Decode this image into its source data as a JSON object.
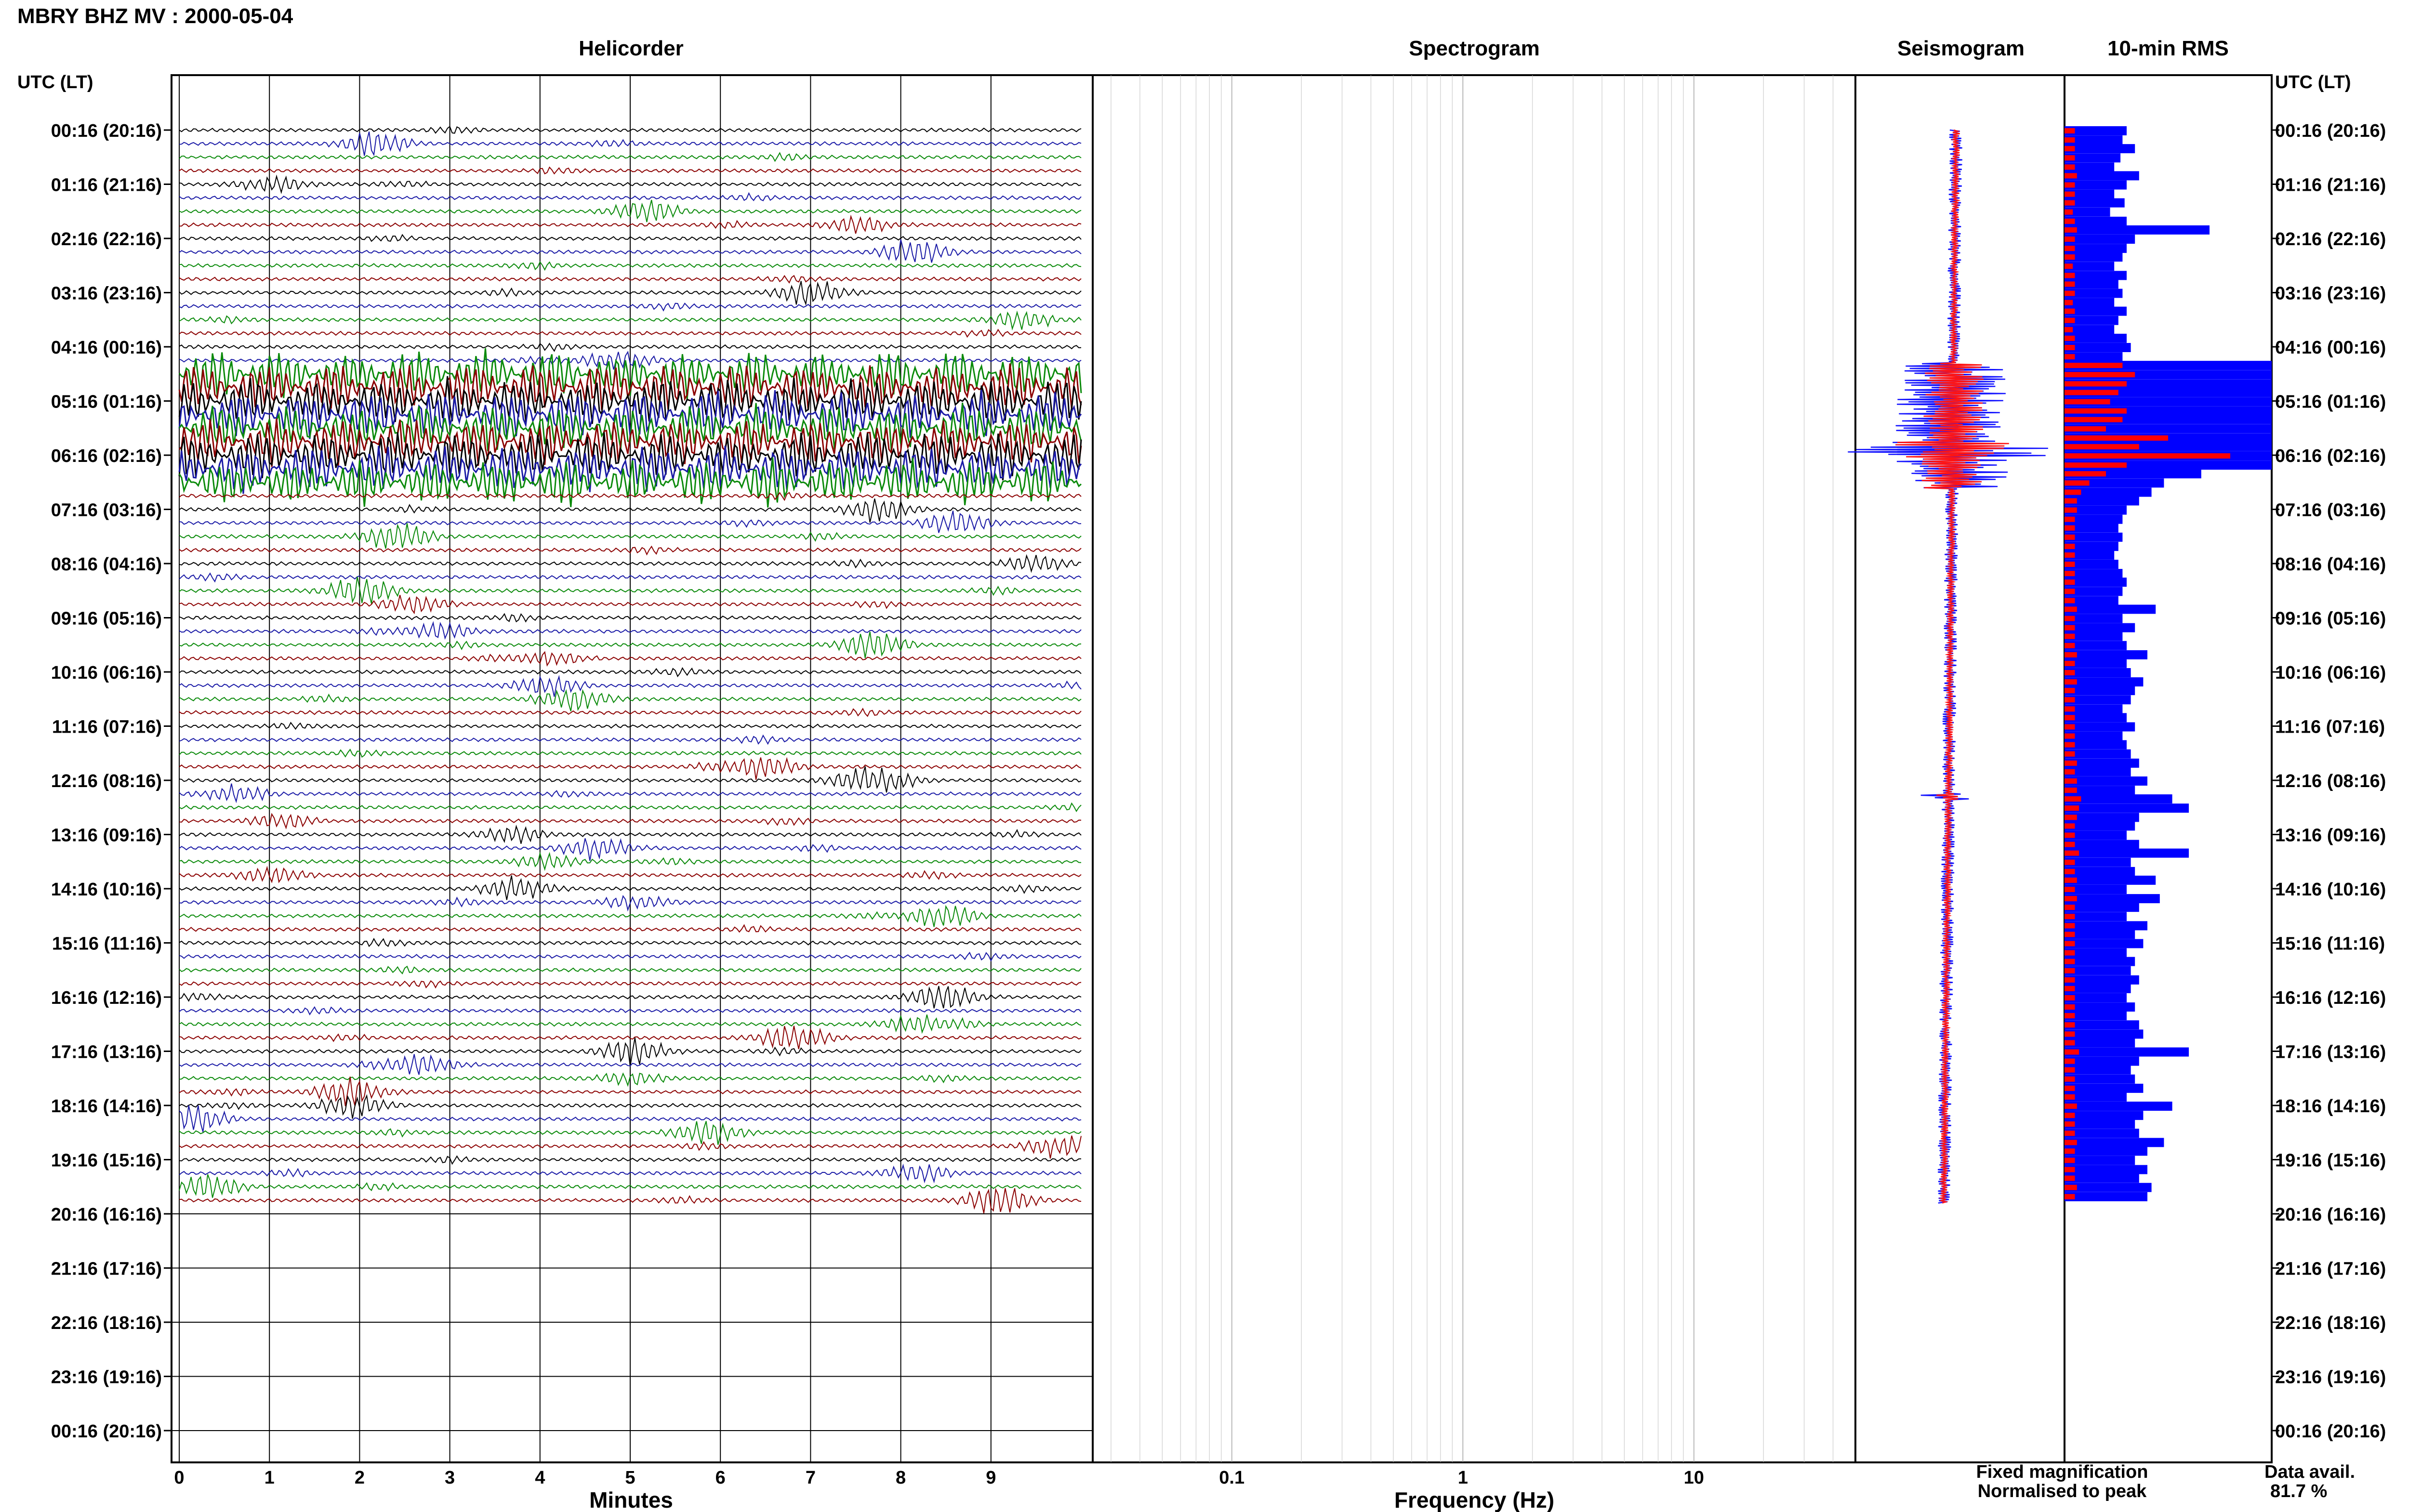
{
  "header": {
    "title": "MBRY BHZ MV : 2000-05-04"
  },
  "panels": {
    "helicorder_title": "Helicorder",
    "spectrogram_title": "Spectrogram",
    "seismogram_title": "Seismogram",
    "rms_title": "10-min RMS",
    "left_axis_title": "UTC (LT)",
    "right_axis_title": "UTC (LT)",
    "helicorder_xlabel": "Minutes",
    "spectrogram_xlabel": "Frequency (Hz)"
  },
  "legend": {
    "fixed": "Fixed magnification",
    "normalised": "Normalised to peak",
    "fixed_color": "#1414ff",
    "normalised_color": "#ff1414"
  },
  "availability": {
    "label": "Data avail.",
    "value": "81.7 %"
  },
  "colors": {
    "trace_cycle": [
      "#000000",
      "#1a1aa6",
      "#0a8a0a",
      "#8b0000"
    ],
    "seismogram_fixed": "#1414ff",
    "seismogram_norm": "#ff1414",
    "rms_fixed": "#0000ff",
    "rms_norm": "#ff0000"
  },
  "chart_data": {
    "type": "heatmap",
    "time_ticks": [
      "00:16 (20:16)",
      "01:16 (21:16)",
      "02:16 (22:16)",
      "03:16 (23:16)",
      "04:16 (00:16)",
      "05:16 (01:16)",
      "06:16 (02:16)",
      "07:16 (03:16)",
      "08:16 (04:16)",
      "09:16 (05:16)",
      "10:16 (06:16)",
      "11:16 (07:16)",
      "12:16 (08:16)",
      "13:16 (09:16)",
      "14:16 (10:16)",
      "15:16 (11:16)",
      "16:16 (12:16)",
      "17:16 (13:16)",
      "18:16 (14:16)",
      "19:16 (15:16)",
      "20:16 (16:16)",
      "21:16 (17:16)",
      "22:16 (18:16)",
      "23:16 (19:16)",
      "00:16 (20:16)"
    ],
    "minute_ticks": [
      "0",
      "1",
      "2",
      "3",
      "4",
      "5",
      "6",
      "7",
      "8",
      "9"
    ],
    "minute_range": [
      0,
      10
    ],
    "freq_ticks": [
      {
        "v": 0.1,
        "label": "0.1"
      },
      {
        "v": 1,
        "label": "1"
      },
      {
        "v": 10,
        "label": "10"
      }
    ],
    "freq_range": [
      0.025,
      50
    ],
    "freq_scale": "log",
    "data_end_hour": 19.8,
    "high_amplitude_window_hours": [
      4.3,
      6.6
    ],
    "rms": [
      {
        "t": 0.0,
        "fixed": 0.3,
        "norm": 0.05
      },
      {
        "t": 0.17,
        "fixed": 0.28,
        "norm": 0.05
      },
      {
        "t": 0.33,
        "fixed": 0.34,
        "norm": 0.05
      },
      {
        "t": 0.5,
        "fixed": 0.27,
        "norm": 0.05
      },
      {
        "t": 0.67,
        "fixed": 0.24,
        "norm": 0.05
      },
      {
        "t": 0.83,
        "fixed": 0.36,
        "norm": 0.06
      },
      {
        "t": 1.0,
        "fixed": 0.3,
        "norm": 0.05
      },
      {
        "t": 1.17,
        "fixed": 0.24,
        "norm": 0.05
      },
      {
        "t": 1.33,
        "fixed": 0.29,
        "norm": 0.05
      },
      {
        "t": 1.5,
        "fixed": 0.22,
        "norm": 0.04
      },
      {
        "t": 1.67,
        "fixed": 0.3,
        "norm": 0.05
      },
      {
        "t": 1.83,
        "fixed": 0.7,
        "norm": 0.06
      },
      {
        "t": 2.0,
        "fixed": 0.34,
        "norm": 0.05
      },
      {
        "t": 2.17,
        "fixed": 0.3,
        "norm": 0.05
      },
      {
        "t": 2.33,
        "fixed": 0.28,
        "norm": 0.05
      },
      {
        "t": 2.5,
        "fixed": 0.24,
        "norm": 0.04
      },
      {
        "t": 2.67,
        "fixed": 0.3,
        "norm": 0.05
      },
      {
        "t": 2.83,
        "fixed": 0.26,
        "norm": 0.05
      },
      {
        "t": 3.0,
        "fixed": 0.28,
        "norm": 0.05
      },
      {
        "t": 3.17,
        "fixed": 0.24,
        "norm": 0.04
      },
      {
        "t": 3.33,
        "fixed": 0.3,
        "norm": 0.05
      },
      {
        "t": 3.5,
        "fixed": 0.26,
        "norm": 0.05
      },
      {
        "t": 3.67,
        "fixed": 0.24,
        "norm": 0.04
      },
      {
        "t": 3.83,
        "fixed": 0.3,
        "norm": 0.05
      },
      {
        "t": 4.0,
        "fixed": 0.32,
        "norm": 0.05
      },
      {
        "t": 4.17,
        "fixed": 0.28,
        "norm": 0.05
      },
      {
        "t": 4.33,
        "fixed": 1.0,
        "norm": 0.28
      },
      {
        "t": 4.5,
        "fixed": 1.0,
        "norm": 0.34
      },
      {
        "t": 4.67,
        "fixed": 1.0,
        "norm": 0.3
      },
      {
        "t": 4.83,
        "fixed": 1.0,
        "norm": 0.26
      },
      {
        "t": 5.0,
        "fixed": 1.0,
        "norm": 0.22
      },
      {
        "t": 5.17,
        "fixed": 1.0,
        "norm": 0.3
      },
      {
        "t": 5.33,
        "fixed": 1.0,
        "norm": 0.28
      },
      {
        "t": 5.5,
        "fixed": 1.0,
        "norm": 0.2
      },
      {
        "t": 5.67,
        "fixed": 1.0,
        "norm": 0.5
      },
      {
        "t": 5.83,
        "fixed": 1.0,
        "norm": 0.36
      },
      {
        "t": 6.0,
        "fixed": 1.0,
        "norm": 0.8
      },
      {
        "t": 6.17,
        "fixed": 1.0,
        "norm": 0.3
      },
      {
        "t": 6.33,
        "fixed": 0.66,
        "norm": 0.2
      },
      {
        "t": 6.5,
        "fixed": 0.48,
        "norm": 0.12
      },
      {
        "t": 6.67,
        "fixed": 0.42,
        "norm": 0.08
      },
      {
        "t": 6.83,
        "fixed": 0.36,
        "norm": 0.06
      },
      {
        "t": 7.0,
        "fixed": 0.3,
        "norm": 0.06
      },
      {
        "t": 7.17,
        "fixed": 0.28,
        "norm": 0.05
      },
      {
        "t": 7.33,
        "fixed": 0.26,
        "norm": 0.05
      },
      {
        "t": 7.5,
        "fixed": 0.28,
        "norm": 0.05
      },
      {
        "t": 7.67,
        "fixed": 0.26,
        "norm": 0.05
      },
      {
        "t": 7.83,
        "fixed": 0.24,
        "norm": 0.05
      },
      {
        "t": 8.0,
        "fixed": 0.26,
        "norm": 0.05
      },
      {
        "t": 8.17,
        "fixed": 0.28,
        "norm": 0.05
      },
      {
        "t": 8.33,
        "fixed": 0.3,
        "norm": 0.05
      },
      {
        "t": 8.5,
        "fixed": 0.28,
        "norm": 0.05
      },
      {
        "t": 8.67,
        "fixed": 0.26,
        "norm": 0.05
      },
      {
        "t": 8.83,
        "fixed": 0.44,
        "norm": 0.06
      },
      {
        "t": 9.0,
        "fixed": 0.28,
        "norm": 0.05
      },
      {
        "t": 9.17,
        "fixed": 0.34,
        "norm": 0.05
      },
      {
        "t": 9.33,
        "fixed": 0.28,
        "norm": 0.05
      },
      {
        "t": 9.5,
        "fixed": 0.3,
        "norm": 0.05
      },
      {
        "t": 9.67,
        "fixed": 0.4,
        "norm": 0.06
      },
      {
        "t": 9.83,
        "fixed": 0.3,
        "norm": 0.05
      },
      {
        "t": 10.0,
        "fixed": 0.32,
        "norm": 0.05
      },
      {
        "t": 10.17,
        "fixed": 0.38,
        "norm": 0.06
      },
      {
        "t": 10.33,
        "fixed": 0.34,
        "norm": 0.05
      },
      {
        "t": 10.5,
        "fixed": 0.32,
        "norm": 0.05
      },
      {
        "t": 10.67,
        "fixed": 0.28,
        "norm": 0.05
      },
      {
        "t": 10.83,
        "fixed": 0.3,
        "norm": 0.05
      },
      {
        "t": 11.0,
        "fixed": 0.34,
        "norm": 0.05
      },
      {
        "t": 11.17,
        "fixed": 0.28,
        "norm": 0.05
      },
      {
        "t": 11.33,
        "fixed": 0.3,
        "norm": 0.05
      },
      {
        "t": 11.5,
        "fixed": 0.32,
        "norm": 0.05
      },
      {
        "t": 11.67,
        "fixed": 0.36,
        "norm": 0.06
      },
      {
        "t": 11.83,
        "fixed": 0.32,
        "norm": 0.05
      },
      {
        "t": 12.0,
        "fixed": 0.4,
        "norm": 0.06
      },
      {
        "t": 12.17,
        "fixed": 0.34,
        "norm": 0.06
      },
      {
        "t": 12.33,
        "fixed": 0.52,
        "norm": 0.08
      },
      {
        "t": 12.5,
        "fixed": 0.6,
        "norm": 0.07
      },
      {
        "t": 12.67,
        "fixed": 0.36,
        "norm": 0.06
      },
      {
        "t": 12.83,
        "fixed": 0.34,
        "norm": 0.05
      },
      {
        "t": 13.0,
        "fixed": 0.3,
        "norm": 0.05
      },
      {
        "t": 13.17,
        "fixed": 0.36,
        "norm": 0.05
      },
      {
        "t": 13.33,
        "fixed": 0.6,
        "norm": 0.07
      },
      {
        "t": 13.5,
        "fixed": 0.32,
        "norm": 0.05
      },
      {
        "t": 13.67,
        "fixed": 0.34,
        "norm": 0.05
      },
      {
        "t": 13.83,
        "fixed": 0.44,
        "norm": 0.06
      },
      {
        "t": 14.0,
        "fixed": 0.3,
        "norm": 0.05
      },
      {
        "t": 14.17,
        "fixed": 0.46,
        "norm": 0.06
      },
      {
        "t": 14.33,
        "fixed": 0.36,
        "norm": 0.05
      },
      {
        "t": 14.5,
        "fixed": 0.3,
        "norm": 0.05
      },
      {
        "t": 14.67,
        "fixed": 0.4,
        "norm": 0.05
      },
      {
        "t": 14.83,
        "fixed": 0.34,
        "norm": 0.05
      },
      {
        "t": 15.0,
        "fixed": 0.38,
        "norm": 0.05
      },
      {
        "t": 15.17,
        "fixed": 0.3,
        "norm": 0.05
      },
      {
        "t": 15.33,
        "fixed": 0.34,
        "norm": 0.05
      },
      {
        "t": 15.5,
        "fixed": 0.32,
        "norm": 0.05
      },
      {
        "t": 15.67,
        "fixed": 0.36,
        "norm": 0.05
      },
      {
        "t": 15.83,
        "fixed": 0.32,
        "norm": 0.05
      },
      {
        "t": 16.0,
        "fixed": 0.3,
        "norm": 0.05
      },
      {
        "t": 16.17,
        "fixed": 0.34,
        "norm": 0.05
      },
      {
        "t": 16.33,
        "fixed": 0.3,
        "norm": 0.05
      },
      {
        "t": 16.5,
        "fixed": 0.36,
        "norm": 0.05
      },
      {
        "t": 16.67,
        "fixed": 0.38,
        "norm": 0.05
      },
      {
        "t": 16.83,
        "fixed": 0.34,
        "norm": 0.05
      },
      {
        "t": 17.0,
        "fixed": 0.6,
        "norm": 0.07
      },
      {
        "t": 17.17,
        "fixed": 0.36,
        "norm": 0.05
      },
      {
        "t": 17.33,
        "fixed": 0.32,
        "norm": 0.05
      },
      {
        "t": 17.5,
        "fixed": 0.34,
        "norm": 0.05
      },
      {
        "t": 17.67,
        "fixed": 0.38,
        "norm": 0.05
      },
      {
        "t": 17.83,
        "fixed": 0.3,
        "norm": 0.05
      },
      {
        "t": 18.0,
        "fixed": 0.52,
        "norm": 0.06
      },
      {
        "t": 18.17,
        "fixed": 0.38,
        "norm": 0.05
      },
      {
        "t": 18.33,
        "fixed": 0.34,
        "norm": 0.05
      },
      {
        "t": 18.5,
        "fixed": 0.36,
        "norm": 0.05
      },
      {
        "t": 18.67,
        "fixed": 0.48,
        "norm": 0.06
      },
      {
        "t": 18.83,
        "fixed": 0.4,
        "norm": 0.05
      },
      {
        "t": 19.0,
        "fixed": 0.34,
        "norm": 0.05
      },
      {
        "t": 19.17,
        "fixed": 0.4,
        "norm": 0.05
      },
      {
        "t": 19.33,
        "fixed": 0.36,
        "norm": 0.05
      },
      {
        "t": 19.5,
        "fixed": 0.42,
        "norm": 0.06
      },
      {
        "t": 19.67,
        "fixed": 0.4,
        "norm": 0.05
      }
    ]
  }
}
